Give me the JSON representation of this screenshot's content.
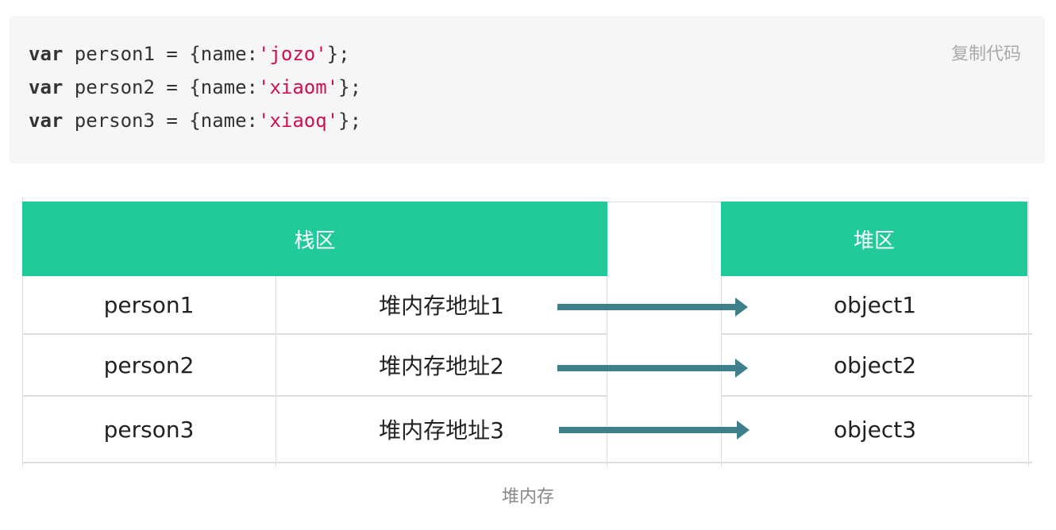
{
  "code_block": {
    "copy_label": "复制代码",
    "lines": [
      {
        "keyword": "var",
        "before": " person1 = {name:",
        "string": "'jozo'",
        "after": "};"
      },
      {
        "keyword": "var",
        "before": " person2 = {name:",
        "string": "'xiaom'",
        "after": "};"
      },
      {
        "keyword": "var",
        "before": " person3 = {name:",
        "string": "'xiaoq'",
        "after": "};"
      }
    ]
  },
  "diagram": {
    "stack_header": "栈区",
    "heap_header": "堆区",
    "rows": [
      {
        "variable": "person1",
        "address": "堆内存地址1",
        "object": "object1"
      },
      {
        "variable": "person2",
        "address": "堆内存地址2",
        "object": "object2"
      },
      {
        "variable": "person3",
        "address": "堆内存地址3",
        "object": "object3"
      }
    ],
    "header_color": "#21ca9a",
    "arrow_color": "#3e7f8c"
  },
  "caption": "堆内存"
}
